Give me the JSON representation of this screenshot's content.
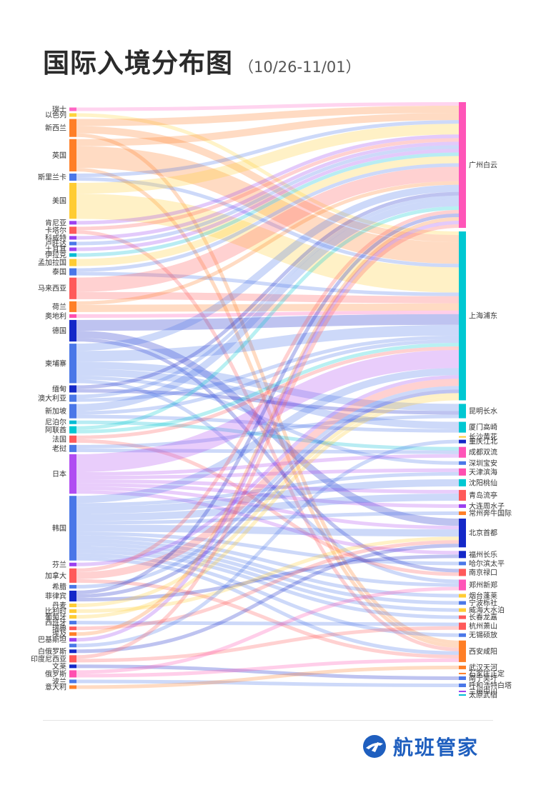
{
  "header": {
    "title": "国际入境分布图",
    "subtitle": "（10/26-11/01）"
  },
  "brand": {
    "name": "航班管家",
    "color": "#1f5fbf"
  },
  "chart_data": {
    "type": "sankey",
    "title": "国际入境分布图",
    "subtitle": "（10/26-11/01）",
    "sources": [
      {
        "name": "瑞士",
        "color": "#ff66c4"
      },
      {
        "name": "以色列",
        "color": "#ffd43b"
      },
      {
        "name": "新西兰",
        "color": "#ff7f27"
      },
      {
        "name": "英国",
        "color": "#ff7f27"
      },
      {
        "name": "斯里兰卡",
        "color": "#4a77e8"
      },
      {
        "name": "美国",
        "color": "#ffcc33"
      },
      {
        "name": "肯尼亚",
        "color": "#9b40f0"
      },
      {
        "name": "卡塔尔",
        "color": "#ff5a5a"
      },
      {
        "name": "科威特",
        "color": "#9b40f0"
      },
      {
        "name": "卢旺达",
        "color": "#4a77e8"
      },
      {
        "name": "土耳其",
        "color": "#9b40f0"
      },
      {
        "name": "伊拉克",
        "color": "#00bcd4"
      },
      {
        "name": "孟加拉国",
        "color": "#ffcc33"
      },
      {
        "name": "泰国",
        "color": "#4a77e8"
      },
      {
        "name": "马来西亚",
        "color": "#ff5a5a"
      },
      {
        "name": "荷兰",
        "color": "#ff7f27"
      },
      {
        "name": "奥地利",
        "color": "#ff4fb0"
      },
      {
        "name": "德国",
        "color": "#1428c8"
      },
      {
        "name": "柬埔寨",
        "color": "#4a77e8"
      },
      {
        "name": "缅甸",
        "color": "#1428c8"
      },
      {
        "name": "澳大利亚",
        "color": "#4a77e8"
      },
      {
        "name": "新加坡",
        "color": "#4a77e8"
      },
      {
        "name": "尼泊尔",
        "color": "#00bcd4"
      },
      {
        "name": "阿联酋",
        "color": "#00c8d2"
      },
      {
        "name": "法国",
        "color": "#ff5a5a"
      },
      {
        "name": "老挝",
        "color": "#4a77e8"
      },
      {
        "name": "日本",
        "color": "#b04cf2"
      },
      {
        "name": "韩国",
        "color": "#4a77e8"
      },
      {
        "name": "芬兰",
        "color": "#9b40f0"
      },
      {
        "name": "加拿大",
        "color": "#ff5a5a"
      },
      {
        "name": "希腊",
        "color": "#4a77e8"
      },
      {
        "name": "菲律宾",
        "color": "#1428c8"
      },
      {
        "name": "丹麦",
        "color": "#ffcc33"
      },
      {
        "name": "比利时",
        "color": "#ffcc33"
      },
      {
        "name": "葡萄牙",
        "color": "#ffcc33"
      },
      {
        "name": "西班牙",
        "color": "#4a77e8"
      },
      {
        "name": "瑞典",
        "color": "#ff5a5a"
      },
      {
        "name": "埃及",
        "color": "#ff7f27"
      },
      {
        "name": "巴基斯坦",
        "color": "#9b40f0"
      },
      {
        "name": "",
        "color": "#4a77e8"
      },
      {
        "name": "白俄罗斯",
        "color": "#1428c8"
      },
      {
        "name": "印度尼西亚",
        "color": "#ff5a5a"
      },
      {
        "name": "文莱",
        "color": "#1428c8"
      },
      {
        "name": "俄罗斯",
        "color": "#ff4fb0"
      },
      {
        "name": "波兰",
        "color": "#4a77e8"
      },
      {
        "name": "意大利",
        "color": "#ff7f27"
      }
    ],
    "targets": [
      {
        "name": "广州白云",
        "color": "#ff55b8"
      },
      {
        "name": "上海浦东",
        "color": "#00c8d2"
      },
      {
        "name": "昆明长水",
        "color": "#00c8d2"
      },
      {
        "name": "厦门高崎",
        "color": "#00c8d2"
      },
      {
        "name": "长沙黄花",
        "color": "#ffcc33"
      },
      {
        "name": "重庆江北",
        "color": "#1428c8"
      },
      {
        "name": "成都双流",
        "color": "#ff55b8"
      },
      {
        "name": "深圳宝安",
        "color": "#4a77e8"
      },
      {
        "name": "天津滨海",
        "color": "#ff4fb0"
      },
      {
        "name": "沈阳桃仙",
        "color": "#00c8d2"
      },
      {
        "name": "青岛流亭",
        "color": "#ff5a5a"
      },
      {
        "name": "大连周水子",
        "color": "#9b40f0"
      },
      {
        "name": "常州奔牛国际",
        "color": "#ff7f27"
      },
      {
        "name": "北京首都",
        "color": "#1428c8"
      },
      {
        "name": "福州长乐",
        "color": "#1428c8"
      },
      {
        "name": "哈尔滨太平",
        "color": "#4a77e8"
      },
      {
        "name": "南京禄口",
        "color": "#ff5a5a"
      },
      {
        "name": "郑州新郑",
        "color": "#ff55b8"
      },
      {
        "name": "烟台蓬莱",
        "color": "#ffcc33"
      },
      {
        "name": "宁波栎社",
        "color": "#4a77e8"
      },
      {
        "name": "威海大水泊",
        "color": "#ffcc33"
      },
      {
        "name": "长春龙嘉",
        "color": "#ff5a5a"
      },
      {
        "name": "杭州萧山",
        "color": "#ff5a5a"
      },
      {
        "name": "无锡硕放",
        "color": "#4a77e8"
      },
      {
        "name": "西安咸阳",
        "color": "#ff7f27"
      },
      {
        "name": "武汉天河",
        "color": "#ff7f27"
      },
      {
        "name": "石家庄正定",
        "color": "#ff7f27"
      },
      {
        "name": "南宁吴圩",
        "color": "#4a77e8"
      },
      {
        "name": "呼和浩特白塔",
        "color": "#4a77e8"
      },
      {
        "name": "兰州中川",
        "color": "#9b40f0"
      },
      {
        "name": "太原武宿",
        "color": "#00bcd4"
      }
    ],
    "links": [
      {
        "source": "瑞士",
        "target": "广州白云",
        "value": 1
      },
      {
        "source": "以色列",
        "target": "上海浦东",
        "value": 1
      },
      {
        "source": "新西兰",
        "target": "广州白云",
        "value": 2
      },
      {
        "source": "新西兰",
        "target": "上海浦东",
        "value": 2
      },
      {
        "source": "新西兰",
        "target": "西安咸阳",
        "value": 1
      },
      {
        "source": "英国",
        "target": "上海浦东",
        "value": 6
      },
      {
        "source": "英国",
        "target": "广州白云",
        "value": 2
      },
      {
        "source": "英国",
        "target": "西安咸阳",
        "value": 1
      },
      {
        "source": "斯里兰卡",
        "target": "上海浦东",
        "value": 1
      },
      {
        "source": "斯里兰卡",
        "target": "广州白云",
        "value": 1
      },
      {
        "source": "美国",
        "target": "上海浦东",
        "value": 7
      },
      {
        "source": "美国",
        "target": "广州白云",
        "value": 3
      },
      {
        "source": "肯尼亚",
        "target": "广州白云",
        "value": 1
      },
      {
        "source": "卡塔尔",
        "target": "广州白云",
        "value": 1
      },
      {
        "source": "卡塔尔",
        "target": "西安咸阳",
        "value": 1
      },
      {
        "source": "科威特",
        "target": "广州白云",
        "value": 1
      },
      {
        "source": "卢旺达",
        "target": "广州白云",
        "value": 1
      },
      {
        "source": "土耳其",
        "target": "广州白云",
        "value": 1
      },
      {
        "source": "伊拉克",
        "target": "广州白云",
        "value": 1
      },
      {
        "source": "孟加拉国",
        "target": "广州白云",
        "value": 2
      },
      {
        "source": "泰国",
        "target": "上海浦东",
        "value": 1
      },
      {
        "source": "泰国",
        "target": "广州白云",
        "value": 1
      },
      {
        "source": "马来西亚",
        "target": "广州白云",
        "value": 4
      },
      {
        "source": "马来西亚",
        "target": "上海浦东",
        "value": 2
      },
      {
        "source": "荷兰",
        "target": "上海浦东",
        "value": 2
      },
      {
        "source": "荷兰",
        "target": "广州白云",
        "value": 1
      },
      {
        "source": "奥地利",
        "target": "上海浦东",
        "value": 1
      },
      {
        "source": "德国",
        "target": "上海浦东",
        "value": 3
      },
      {
        "source": "德国",
        "target": "北京首都",
        "value": 2
      },
      {
        "source": "德国",
        "target": "南京禄口",
        "value": 1
      },
      {
        "source": "柬埔寨",
        "target": "上海浦东",
        "value": 3
      },
      {
        "source": "柬埔寨",
        "target": "昆明长水",
        "value": 2
      },
      {
        "source": "柬埔寨",
        "target": "广州白云",
        "value": 2
      },
      {
        "source": "柬埔寨",
        "target": "厦门高崎",
        "value": 2
      },
      {
        "source": "柬埔寨",
        "target": "深圳宝安",
        "value": 1
      },
      {
        "source": "柬埔寨",
        "target": "郑州新郑",
        "value": 1
      },
      {
        "source": "缅甸",
        "target": "昆明长水",
        "value": 1
      },
      {
        "source": "缅甸",
        "target": "广州白云",
        "value": 1
      },
      {
        "source": "澳大利亚",
        "target": "上海浦东",
        "value": 1
      },
      {
        "source": "澳大利亚",
        "target": "广州白云",
        "value": 1
      },
      {
        "source": "新加坡",
        "target": "广州白云",
        "value": 2
      },
      {
        "source": "新加坡",
        "target": "上海浦东",
        "value": 1
      },
      {
        "source": "新加坡",
        "target": "厦门高崎",
        "value": 1
      },
      {
        "source": "尼泊尔",
        "target": "成都双流",
        "value": 1
      },
      {
        "source": "阿联酋",
        "target": "广州白云",
        "value": 1
      },
      {
        "source": "阿联酋",
        "target": "上海浦东",
        "value": 1
      },
      {
        "source": "法国",
        "target": "上海浦东",
        "value": 1
      },
      {
        "source": "法国",
        "target": "南京禄口",
        "value": 1
      },
      {
        "source": "老挝",
        "target": "昆明长水",
        "value": 1
      },
      {
        "source": "老挝",
        "target": "成都双流",
        "value": 1
      },
      {
        "source": "日本",
        "target": "上海浦东",
        "value": 5
      },
      {
        "source": "日本",
        "target": "大连周水子",
        "value": 1
      },
      {
        "source": "日本",
        "target": "青岛流亭",
        "value": 1
      },
      {
        "source": "日本",
        "target": "天津滨海",
        "value": 1
      },
      {
        "source": "日本",
        "target": "北京首都",
        "value": 1
      },
      {
        "source": "日本",
        "target": "福州长乐",
        "value": 1
      },
      {
        "source": "日本",
        "target": "成都双流",
        "value": 1
      },
      {
        "source": "韩国",
        "target": "上海浦东",
        "value": 2
      },
      {
        "source": "韩国",
        "target": "沈阳桃仙",
        "value": 2
      },
      {
        "source": "韩国",
        "target": "青岛流亭",
        "value": 2
      },
      {
        "source": "韩国",
        "target": "天津滨海",
        "value": 1
      },
      {
        "source": "韩国",
        "target": "北京首都",
        "value": 2
      },
      {
        "source": "韩国",
        "target": "哈尔滨太平",
        "value": 1
      },
      {
        "source": "韩国",
        "target": "烟台蓬莱",
        "value": 1
      },
      {
        "source": "韩国",
        "target": "威海大水泊",
        "value": 1
      },
      {
        "source": "韩国",
        "target": "长春龙嘉",
        "value": 1
      },
      {
        "source": "韩国",
        "target": "无锡硕放",
        "value": 1
      },
      {
        "source": "韩国",
        "target": "西安咸阳",
        "value": 1
      },
      {
        "source": "韩国",
        "target": "宁波栎社",
        "value": 1
      },
      {
        "source": "韩国",
        "target": "常州奔牛国际",
        "value": 1
      },
      {
        "source": "韩国",
        "target": "郑州新郑",
        "value": 1
      },
      {
        "source": "芬兰",
        "target": "上海浦东",
        "value": 1
      },
      {
        "source": "加拿大",
        "target": "上海浦东",
        "value": 2
      },
      {
        "source": "加拿大",
        "target": "广州白云",
        "value": 1
      },
      {
        "source": "加拿大",
        "target": "西安咸阳",
        "value": 1
      },
      {
        "source": "希腊",
        "target": "上海浦东",
        "value": 1
      },
      {
        "source": "菲律宾",
        "target": "上海浦东",
        "value": 1
      },
      {
        "source": "菲律宾",
        "target": "广州白云",
        "value": 1
      },
      {
        "source": "菲律宾",
        "target": "福州长乐",
        "value": 1
      },
      {
        "source": "丹麦",
        "target": "上海浦东",
        "value": 1
      },
      {
        "source": "比利时",
        "target": "北京首都",
        "value": 1
      },
      {
        "source": "葡萄牙",
        "target": "上海浦东",
        "value": 1
      },
      {
        "source": "西班牙",
        "target": "杭州萧山",
        "value": 1
      },
      {
        "source": "瑞典",
        "target": "北京首都",
        "value": 1
      },
      {
        "source": "埃及",
        "target": "广州白云",
        "value": 1
      },
      {
        "source": "巴基斯坦",
        "target": "广州白云",
        "value": 1
      },
      {
        "source": "",
        "target": "重庆江北",
        "value": 1
      },
      {
        "source": "白俄罗斯",
        "target": "北京首都",
        "value": 1
      },
      {
        "source": "印度尼西亚",
        "target": "广州白云",
        "value": 1
      },
      {
        "source": "印度尼西亚",
        "target": "杭州萧山",
        "value": 1
      },
      {
        "source": "文莱",
        "target": "南宁吴圩",
        "value": 1
      },
      {
        "source": "俄罗斯",
        "target": "郑州新郑",
        "value": 1
      },
      {
        "source": "俄罗斯",
        "target": "西安咸阳",
        "value": 1
      },
      {
        "source": "波兰",
        "target": "呼和浩特白塔",
        "value": 1
      },
      {
        "source": "意大利",
        "target": "武汉天河",
        "value": 1
      }
    ]
  }
}
